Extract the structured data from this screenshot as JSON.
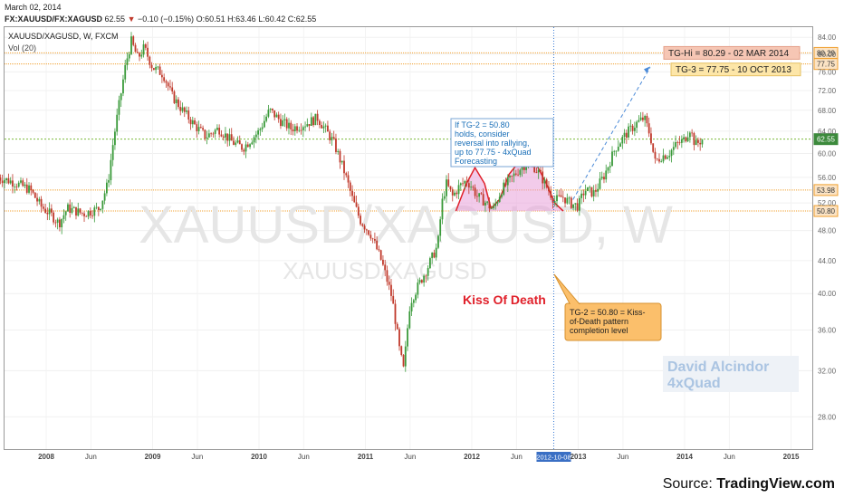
{
  "header": {
    "date": "March 02, 2014",
    "symbol": "FX:XAUUSD/FX:XAGUSD",
    "last": "62.55",
    "change_arrow": "▼",
    "change": "−0.10 (−0.15%)",
    "ohlc": {
      "o_label": "O:",
      "o": "60.51",
      "h_label": "H:",
      "h": "63.46",
      "l_label": "L:",
      "l": "60.42",
      "c_label": "C:",
      "c": "62.55"
    },
    "series_title": "XAUUSD/XAGUSD, W, FXCM",
    "indicator": "Vol (20)"
  },
  "watermark": {
    "big": "XAUUSD/XAGUSD, W",
    "small": "XAUUSD/XAGUSD"
  },
  "signature": [
    "David Alcindor",
    "4xQuad"
  ],
  "source": {
    "prefix": "Source: ",
    "brand": "TradingView.com"
  },
  "colors": {
    "up": "#3a9a3a",
    "down": "#c0392b",
    "level": "#f0a030",
    "current": "#7cba3a",
    "callout": "#1a6fb8",
    "pattern": "#e8a0d8",
    "kiss": "#e0202a"
  },
  "chart_data": {
    "type": "candlestick",
    "title": "XAUUSD/XAGUSD, W, FXCM",
    "y_axis": {
      "ticks": [
        28,
        32,
        36,
        40,
        44,
        48,
        52,
        56,
        60,
        64,
        68,
        72,
        76,
        80,
        84
      ],
      "ylim": [
        25.5,
        86.5
      ],
      "position": "right",
      "log": true
    },
    "x_axis": {
      "ticks": [
        "2008",
        "Jun",
        "2009",
        "Jun",
        "2010",
        "Jun",
        "2011",
        "Jun",
        "2012",
        "Jun",
        "2013",
        "Jun",
        "2014",
        "Jun",
        "2015"
      ],
      "highlight_label": "2012-10-08"
    },
    "price_path": [
      {
        "t": 2007.55,
        "v": 56.0
      },
      {
        "t": 2007.7,
        "v": 55.2
      },
      {
        "t": 2007.85,
        "v": 54.0
      },
      {
        "t": 2007.95,
        "v": 51.5
      },
      {
        "t": 2008.05,
        "v": 50.2
      },
      {
        "t": 2008.12,
        "v": 49.0
      },
      {
        "t": 2008.2,
        "v": 51.2
      },
      {
        "t": 2008.35,
        "v": 50.4
      },
      {
        "t": 2008.5,
        "v": 51.2
      },
      {
        "t": 2008.58,
        "v": 55.0
      },
      {
        "t": 2008.63,
        "v": 62.0
      },
      {
        "t": 2008.7,
        "v": 71.0
      },
      {
        "t": 2008.75,
        "v": 78.0
      },
      {
        "t": 2008.8,
        "v": 83.0
      },
      {
        "t": 2008.86,
        "v": 79.0
      },
      {
        "t": 2008.92,
        "v": 81.5
      },
      {
        "t": 2009.0,
        "v": 77.0
      },
      {
        "t": 2009.1,
        "v": 75.5
      },
      {
        "t": 2009.18,
        "v": 71.0
      },
      {
        "t": 2009.28,
        "v": 68.0
      },
      {
        "t": 2009.4,
        "v": 65.0
      },
      {
        "t": 2009.5,
        "v": 63.0
      },
      {
        "t": 2009.62,
        "v": 64.5
      },
      {
        "t": 2009.75,
        "v": 62.0
      },
      {
        "t": 2009.85,
        "v": 61.0
      },
      {
        "t": 2010.0,
        "v": 64.0
      },
      {
        "t": 2010.1,
        "v": 68.0
      },
      {
        "t": 2010.2,
        "v": 66.0
      },
      {
        "t": 2010.3,
        "v": 64.5
      },
      {
        "t": 2010.45,
        "v": 65.5
      },
      {
        "t": 2010.55,
        "v": 66.5
      },
      {
        "t": 2010.7,
        "v": 62.0
      },
      {
        "t": 2010.8,
        "v": 57.0
      },
      {
        "t": 2010.88,
        "v": 52.5
      },
      {
        "t": 2010.95,
        "v": 49.5
      },
      {
        "t": 2011.05,
        "v": 47.5
      },
      {
        "t": 2011.15,
        "v": 44.0
      },
      {
        "t": 2011.25,
        "v": 39.5
      },
      {
        "t": 2011.32,
        "v": 34.0
      },
      {
        "t": 2011.36,
        "v": 32.0
      },
      {
        "t": 2011.42,
        "v": 39.0
      },
      {
        "t": 2011.5,
        "v": 41.0
      },
      {
        "t": 2011.58,
        "v": 43.0
      },
      {
        "t": 2011.68,
        "v": 46.0
      },
      {
        "t": 2011.72,
        "v": 52.0
      },
      {
        "t": 2011.76,
        "v": 55.0
      },
      {
        "t": 2011.82,
        "v": 53.0
      },
      {
        "t": 2011.88,
        "v": 54.5
      },
      {
        "t": 2011.95,
        "v": 55.5
      },
      {
        "t": 2012.0,
        "v": 54.5
      },
      {
        "t": 2012.05,
        "v": 53.0
      },
      {
        "t": 2012.1,
        "v": 52.5
      },
      {
        "t": 2012.2,
        "v": 51.0
      },
      {
        "t": 2012.28,
        "v": 54.0
      },
      {
        "t": 2012.38,
        "v": 56.0
      },
      {
        "t": 2012.48,
        "v": 58.0
      },
      {
        "t": 2012.56,
        "v": 58.3
      },
      {
        "t": 2012.64,
        "v": 56.5
      },
      {
        "t": 2012.72,
        "v": 54.0
      },
      {
        "t": 2012.78,
        "v": 52.3
      },
      {
        "t": 2012.85,
        "v": 53.0
      },
      {
        "t": 2012.92,
        "v": 52.0
      },
      {
        "t": 2013.0,
        "v": 51.5
      },
      {
        "t": 2013.06,
        "v": 54.0
      },
      {
        "t": 2013.15,
        "v": 53.5
      },
      {
        "t": 2013.25,
        "v": 56.5
      },
      {
        "t": 2013.35,
        "v": 61.0
      },
      {
        "t": 2013.45,
        "v": 63.5
      },
      {
        "t": 2013.55,
        "v": 65.5
      },
      {
        "t": 2013.62,
        "v": 66.5
      },
      {
        "t": 2013.68,
        "v": 63.0
      },
      {
        "t": 2013.72,
        "v": 58.5
      },
      {
        "t": 2013.78,
        "v": 59.5
      },
      {
        "t": 2013.85,
        "v": 60.0
      },
      {
        "t": 2013.92,
        "v": 61.5
      },
      {
        "t": 2014.0,
        "v": 62.5
      },
      {
        "t": 2014.05,
        "v": 64.5
      },
      {
        "t": 2014.1,
        "v": 61.5
      },
      {
        "t": 2014.17,
        "v": 62.55
      }
    ],
    "levels": [
      {
        "value": 80.29,
        "label": "80.29",
        "style": "dotted"
      },
      {
        "value": 77.75,
        "label": "77.75",
        "style": "dotted"
      },
      {
        "value": 62.55,
        "label": "62.55",
        "style": "current"
      },
      {
        "value": 53.98,
        "label": "53.98",
        "style": "dotted"
      },
      {
        "value": 50.8,
        "label": "50.80",
        "style": "dotted"
      }
    ],
    "boxes": [
      {
        "id": "tg-hi",
        "text": "TG-Hi = 80.29 - 02 MAR 2014"
      },
      {
        "id": "tg-3",
        "text": "TG-3 = 77.75 - 10 OCT 2013"
      }
    ],
    "callout": [
      "If TG-2 = 50.80",
      "holds, consider",
      "reversal into rallying,",
      "up to 77.75 - 4xQuad",
      "Forecasting"
    ],
    "pattern_label": "Kiss Of Death",
    "tg2_note": [
      "TG-2 = 50.80 = Kiss-",
      "of-Death pattern",
      "completion level"
    ]
  }
}
